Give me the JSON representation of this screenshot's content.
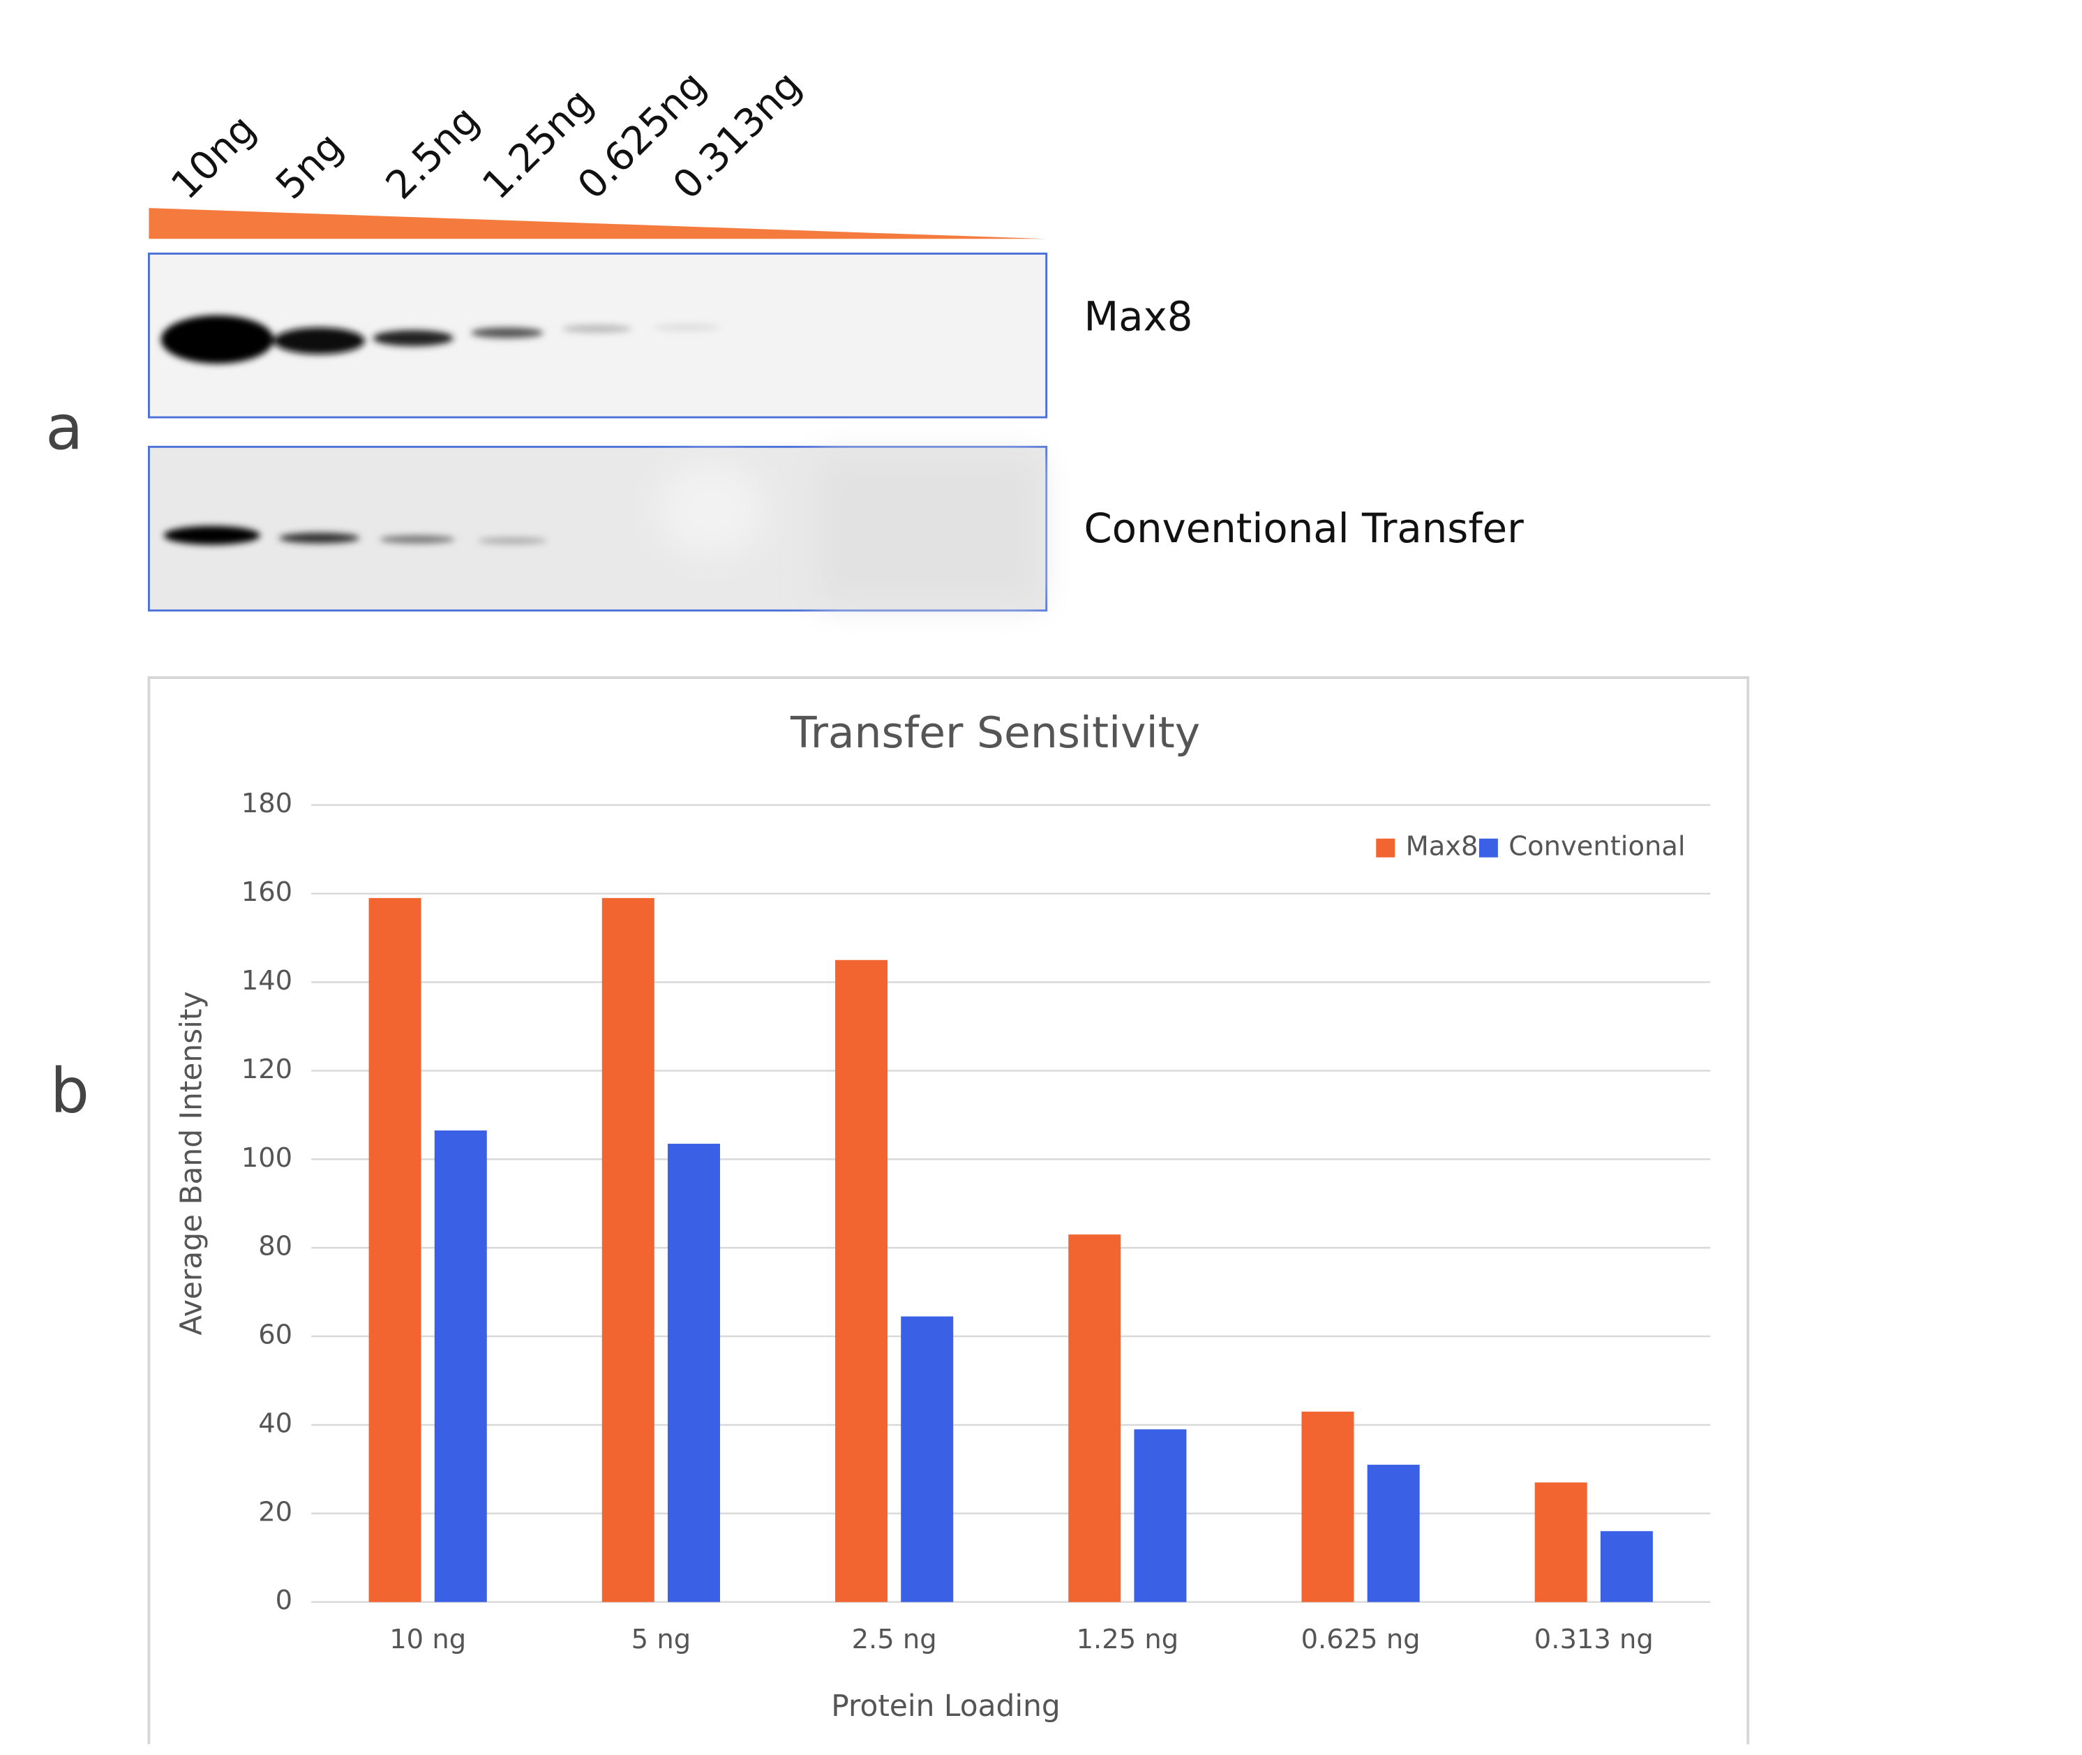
{
  "panel_labels": [
    "a",
    "b"
  ],
  "lane_labels": [
    "10ng",
    "5ng",
    "2.5ng",
    "1.25ng",
    "0.625ng",
    "0.313ng"
  ],
  "blot_labels": [
    "Max8",
    "Conventional Transfer"
  ],
  "chart_data": {
    "type": "bar",
    "title": "Transfer Sensitivity",
    "x_label": "Protein Loading",
    "y_label": "Average Band Intensity",
    "categories": [
      "10 ng",
      "5 ng",
      "2.5 ng",
      "1.25 ng",
      "0.625 ng",
      "0.313 ng"
    ],
    "series": [
      {
        "name": "Max8",
        "color": "#f26430",
        "values": [
          159,
          159,
          145,
          83,
          43,
          27
        ]
      },
      {
        "name": "Conventional",
        "color": "#3a60e6",
        "values": [
          106.5,
          103.5,
          64.5,
          39,
          31,
          16
        ]
      }
    ],
    "ylim": [
      0,
      180
    ],
    "yticks": [
      0,
      20,
      40,
      60,
      80,
      100,
      120,
      140,
      160,
      180
    ],
    "grid": true,
    "legend": "top-right"
  }
}
